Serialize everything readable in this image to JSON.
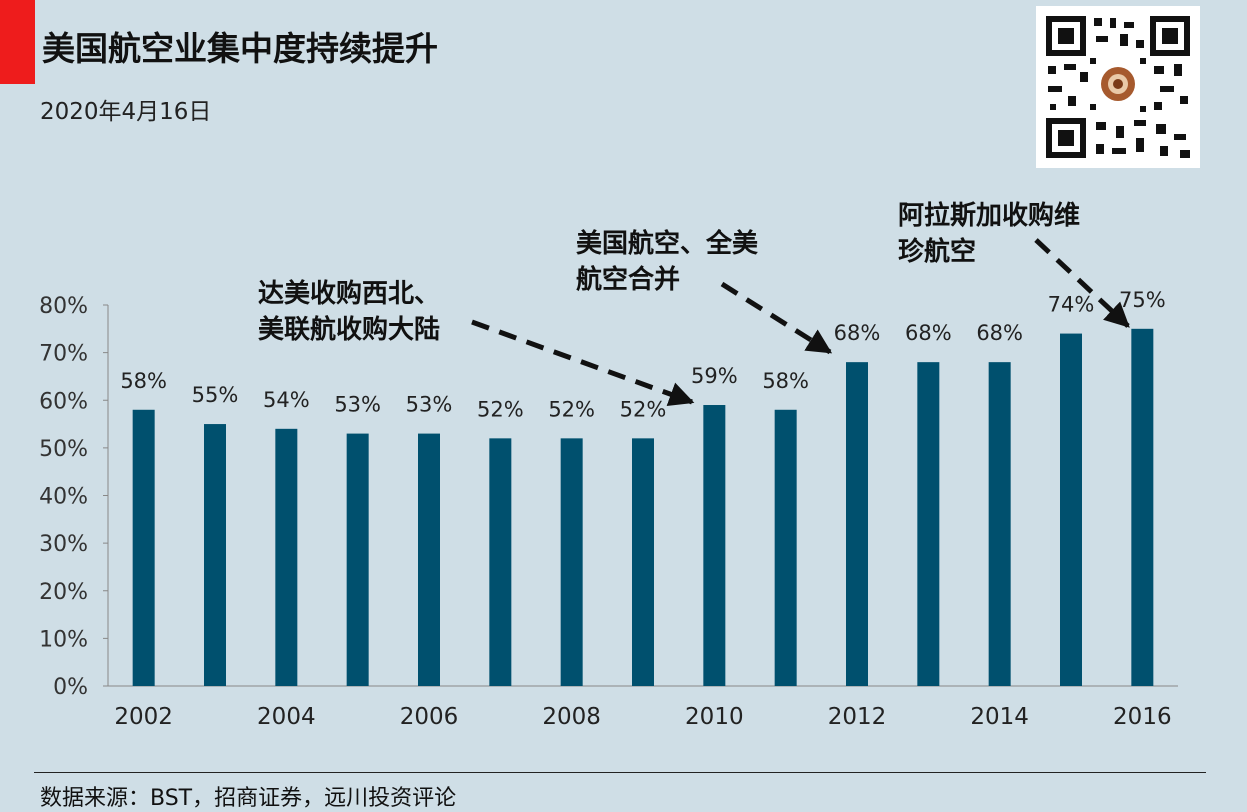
{
  "header": {
    "title": "美国航空业集中度持续提升",
    "date": "2020年4月16日"
  },
  "footer": {
    "source": "数据来源：BST，招商证券，远川投资评论"
  },
  "colors": {
    "bar": "#00506e",
    "background": "#cfdee6",
    "accent": "#ee1c1c"
  },
  "chart_data": {
    "type": "bar",
    "categories": [
      "2002",
      "2003",
      "2004",
      "2005",
      "2006",
      "2007",
      "2008",
      "2009",
      "2010",
      "2011",
      "2012",
      "2013",
      "2014",
      "2015",
      "2016"
    ],
    "values": [
      58,
      55,
      54,
      53,
      53,
      52,
      52,
      52,
      59,
      58,
      68,
      68,
      68,
      74,
      75
    ],
    "data_labels": [
      "58%",
      "55%",
      "54%",
      "53%",
      "53%",
      "52%",
      "52%",
      "52%",
      "59%",
      "58%",
      "68%",
      "68%",
      "68%",
      "74%",
      "75%"
    ],
    "x_tick_labels": [
      "2002",
      "",
      "2004",
      "",
      "2006",
      "",
      "2008",
      "",
      "2010",
      "",
      "2012",
      "",
      "2014",
      "",
      "2016"
    ],
    "y_tick_labels": [
      "0%",
      "10%",
      "20%",
      "30%",
      "40%",
      "50%",
      "60%",
      "70%",
      "80%"
    ],
    "ylim": [
      0,
      80
    ],
    "grid": false,
    "annotations": [
      {
        "lines": [
          "达美收购西北、",
          "美联航收购大陆"
        ],
        "target": "2009"
      },
      {
        "lines": [
          "美国航空、全美",
          "航空合并"
        ],
        "target": "2012"
      },
      {
        "lines": [
          "阿拉斯加收购维",
          "珍航空"
        ],
        "target": "2016"
      }
    ]
  }
}
